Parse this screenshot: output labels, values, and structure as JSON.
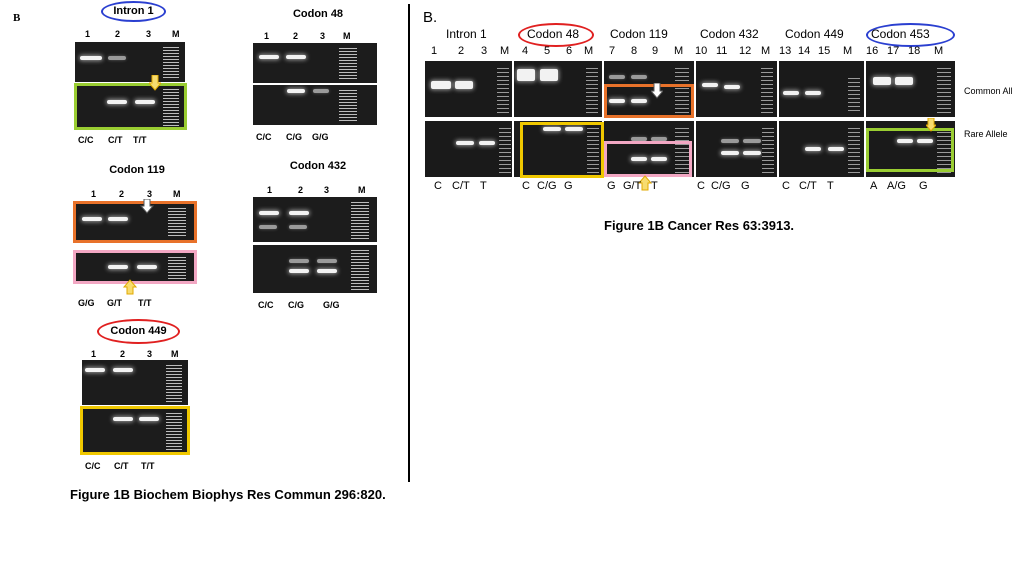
{
  "left": {
    "panel_letter": "B",
    "intron1": {
      "title": "Intron 1",
      "lanes": [
        "1",
        "2",
        "3",
        "M"
      ],
      "genotypes": [
        "C/C",
        "C/T",
        "T/T"
      ]
    },
    "codon48": {
      "title": "Codon  48",
      "lanes": [
        "1",
        "2",
        "3",
        "M"
      ],
      "genotypes": [
        "C/C",
        "C/G",
        "G/G"
      ]
    },
    "codon119": {
      "title": "Codon 119",
      "lanes": [
        "1",
        "2",
        "3",
        "M"
      ],
      "genotypes": [
        "G/G",
        "G/T",
        "T/T"
      ]
    },
    "codon432": {
      "title": "Codon 432",
      "lanes": [
        "1",
        "2",
        "3",
        "M"
      ],
      "genotypes": [
        "C/C",
        "C/G",
        "G/G"
      ]
    },
    "codon449": {
      "title": "Codon  449",
      "lanes": [
        "1",
        "2",
        "3",
        "M"
      ],
      "genotypes": [
        "C/C",
        "C/T",
        "T/T"
      ]
    },
    "caption": "Figure 1B Biochem Biophys Res Commun 296:820."
  },
  "right": {
    "panel_letter": "B.",
    "titles": [
      "Intron 1",
      "Codon 48",
      "Codon 119",
      "Codon 432",
      "Codon 449",
      "Codon 453"
    ],
    "lanes": [
      "1",
      "2",
      "3",
      "M",
      "4",
      "5",
      "6",
      "M",
      "7",
      "8",
      "9",
      "M",
      "10",
      "11",
      "12",
      "M",
      "13",
      "14",
      "15",
      "M",
      "16",
      "17",
      "18",
      "M"
    ],
    "genotypes": [
      "C",
      "C/T",
      "T",
      "C",
      "C/G",
      "G",
      "G",
      "G/T",
      "T",
      "C",
      "C/G",
      "G",
      "C",
      "C/T",
      "T",
      "A",
      "A/G",
      "G"
    ],
    "row_labels": {
      "common": "Common All",
      "rare": "Rare Allele"
    },
    "caption": "Figure 1B Cancer Res 63:3913."
  },
  "colors": {
    "red": "#e02020",
    "blue": "#2a3fd0",
    "green": "#9acd32",
    "orange": "#e8722a",
    "pink": "#f2a7c3",
    "yellow": "#f0c800",
    "arrow_fill": "#f7dc6f",
    "arrow_stroke": "#e0a800"
  }
}
